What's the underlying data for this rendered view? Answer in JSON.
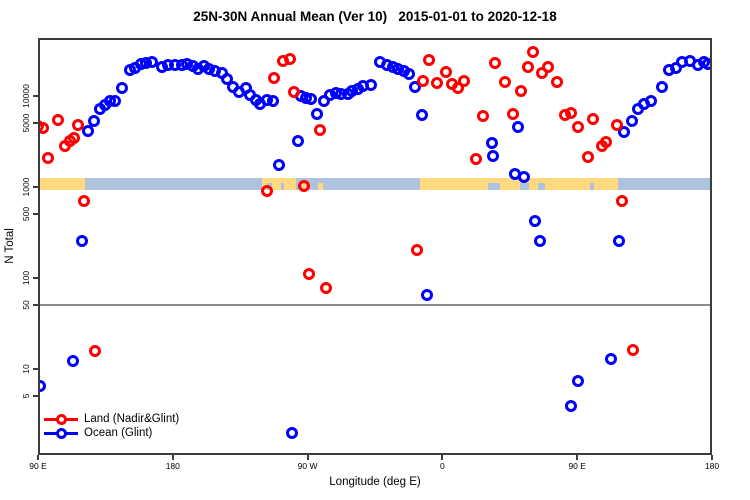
{
  "title": "25N-30N Annual Mean (Ver 10)   2015-01-01 to 2020-12-18",
  "chart_data": {
    "type": "scatter",
    "title": "25N-30N Annual Mean (Ver 10)   2015-01-01 to 2020-12-18",
    "xlabel": "Longitude (deg E)",
    "ylabel": "N Total",
    "x_axis": {
      "min": 90,
      "max": 540,
      "note": "longitude wraps eastward: 90E to 180 to 90W to 0 to 90E to 180",
      "ticks": [
        {
          "lon": 90,
          "label": "90 E"
        },
        {
          "lon": 180,
          "label": "180"
        },
        {
          "lon": 270,
          "label": "90 W"
        },
        {
          "lon": 360,
          "label": "0"
        },
        {
          "lon": 450,
          "label": "90 E"
        },
        {
          "lon": 540,
          "label": "180"
        }
      ]
    },
    "y_axis": {
      "scale": "log10",
      "min": 1.1,
      "max": 42000,
      "grid": false,
      "ticks": [
        {
          "value": 5,
          "label": "5"
        },
        {
          "value": 10,
          "label": "10"
        },
        {
          "value": 50,
          "label": "50"
        },
        {
          "value": 100,
          "label": "100"
        },
        {
          "value": 500,
          "label": "500"
        },
        {
          "value": 1000,
          "label": "1000"
        },
        {
          "value": 5000,
          "label": "5000"
        },
        {
          "value": 10000,
          "label": "10000"
        }
      ]
    },
    "reference_line": {
      "y": 50,
      "color": "#8c8c8c"
    },
    "surface_band": {
      "y_top_value": 1250,
      "y_bottom_value": 930,
      "land_color": "#FFD980",
      "ocean_color": "#AFC3DE",
      "segments": [
        {
          "from": 90,
          "to": 121.4,
          "surface": "land"
        },
        {
          "from": 121.4,
          "to": 239.6,
          "surface": "ocean"
        },
        {
          "from": 239.6,
          "to": 262.3,
          "surface": "land"
        },
        {
          "from": 262.3,
          "to": 345.1,
          "surface": "ocean"
        },
        {
          "from": 345.1,
          "to": 477.3,
          "surface": "land"
        },
        {
          "from": 477.3,
          "to": 540,
          "surface": "ocean"
        }
      ],
      "specks": [
        {
          "from": 243,
          "to": 246,
          "surface": "ocean"
        },
        {
          "from": 252,
          "to": 254.5,
          "surface": "ocean"
        },
        {
          "from": 266.5,
          "to": 269,
          "surface": "land"
        },
        {
          "from": 277,
          "to": 280,
          "surface": "land"
        },
        {
          "from": 390.5,
          "to": 398.5,
          "surface": "ocean"
        },
        {
          "from": 412,
          "to": 418,
          "surface": "ocean"
        },
        {
          "from": 424,
          "to": 428.5,
          "surface": "ocean"
        },
        {
          "from": 458.5,
          "to": 461.5,
          "surface": "ocean"
        }
      ]
    },
    "legend_position": "bottom-left",
    "series": [
      {
        "name": "Land (Nadir&Glint)",
        "color": "#FF0000",
        "marker": "open-circle",
        "points": [
          [
            90.0,
            4680
          ],
          [
            93.3,
            4450
          ],
          [
            96.7,
            2080
          ],
          [
            103.4,
            5450
          ],
          [
            108.0,
            2820
          ],
          [
            111.4,
            3200
          ],
          [
            114.0,
            3450
          ],
          [
            116.7,
            4800
          ],
          [
            120.7,
            702
          ],
          [
            128.1,
            15.8
          ],
          [
            242.9,
            904
          ],
          [
            247.6,
            15800
          ],
          [
            253.6,
            24300
          ],
          [
            258.3,
            25500
          ],
          [
            260.9,
            11100
          ],
          [
            267.6,
            1030
          ],
          [
            271.0,
            111
          ],
          [
            278.3,
            4230
          ],
          [
            282.3,
            77.6
          ],
          [
            343.1,
            203
          ],
          [
            347.1,
            14600
          ],
          [
            351.1,
            24900
          ],
          [
            356.4,
            13900
          ],
          [
            362.4,
            18400
          ],
          [
            366.4,
            13600
          ],
          [
            370.4,
            12200
          ],
          [
            374.4,
            14600
          ],
          [
            382.4,
            2030
          ],
          [
            387.1,
            6030
          ],
          [
            395.1,
            23100
          ],
          [
            401.8,
            14300
          ],
          [
            407.1,
            6340
          ],
          [
            412.5,
            11400
          ],
          [
            417.1,
            20800
          ],
          [
            420.5,
            30500
          ],
          [
            426.5,
            17900
          ],
          [
            430.5,
            20800
          ],
          [
            436.5,
            14300
          ],
          [
            441.9,
            6180
          ],
          [
            445.9,
            6500
          ],
          [
            450.5,
            4560
          ],
          [
            457.2,
            2140
          ],
          [
            460.6,
            5580
          ],
          [
            466.6,
            2820
          ],
          [
            469.3,
            3130
          ],
          [
            476.6,
            4800
          ],
          [
            480.0,
            702
          ],
          [
            487.3,
            16.2
          ]
        ]
      },
      {
        "name": "Ocean (Glint)",
        "color": "#0000FF",
        "marker": "open-circle",
        "points": [
          [
            91.3,
            6.5
          ],
          [
            113.4,
            12.2
          ],
          [
            119.4,
            255
          ],
          [
            123.4,
            4120
          ],
          [
            127.4,
            5310
          ],
          [
            131.4,
            7190
          ],
          [
            134.7,
            7970
          ],
          [
            138.1,
            8810
          ],
          [
            141.4,
            8810
          ],
          [
            146.1,
            12200
          ],
          [
            151.4,
            19300
          ],
          [
            154.7,
            20300
          ],
          [
            158.7,
            22500
          ],
          [
            162.1,
            23100
          ],
          [
            166.1,
            23700
          ],
          [
            172.8,
            20800
          ],
          [
            176.8,
            21900
          ],
          [
            181.5,
            21900
          ],
          [
            186.1,
            21900
          ],
          [
            189.5,
            22500
          ],
          [
            193.5,
            21400
          ],
          [
            196.8,
            19800
          ],
          [
            200.8,
            21400
          ],
          [
            204.2,
            19800
          ],
          [
            208.2,
            18800
          ],
          [
            212.9,
            17900
          ],
          [
            216.2,
            15400
          ],
          [
            220.2,
            12600
          ],
          [
            224.2,
            11100
          ],
          [
            228.9,
            12200
          ],
          [
            231.6,
            10300
          ],
          [
            235.6,
            9040
          ],
          [
            238.2,
            8170
          ],
          [
            242.9,
            9040
          ],
          [
            246.9,
            8810
          ],
          [
            250.9,
            1750
          ],
          [
            259.4,
            2.0
          ],
          [
            263.6,
            3200
          ],
          [
            265.6,
            10000
          ],
          [
            268.9,
            9510
          ],
          [
            272.3,
            9260
          ],
          [
            276.3,
            6340
          ],
          [
            281.0,
            8810
          ],
          [
            285.0,
            10300
          ],
          [
            289.0,
            10800
          ],
          [
            292.3,
            10500
          ],
          [
            297.0,
            10500
          ],
          [
            299.7,
            11400
          ],
          [
            303.7,
            11900
          ],
          [
            307.0,
            12900
          ],
          [
            312.4,
            13200
          ],
          [
            318.4,
            23700
          ],
          [
            323.0,
            21900
          ],
          [
            327.0,
            20800
          ],
          [
            330.4,
            19800
          ],
          [
            334.4,
            18800
          ],
          [
            337.7,
            17500
          ],
          [
            341.7,
            12600
          ],
          [
            346.4,
            6180
          ],
          [
            349.7,
            65
          ],
          [
            393.1,
            3050
          ],
          [
            393.8,
            2190
          ],
          [
            408.5,
            1390
          ],
          [
            410.5,
            4560
          ],
          [
            414.5,
            1290
          ],
          [
            421.8,
            423
          ],
          [
            425.2,
            255
          ],
          [
            445.9,
            3.9
          ],
          [
            450.5,
            7.4
          ],
          [
            472.6,
            12.9
          ],
          [
            477.9,
            255
          ],
          [
            481.3,
            4020
          ],
          [
            486.7,
            5310
          ],
          [
            490.7,
            7190
          ],
          [
            494.7,
            8170
          ],
          [
            499.4,
            8810
          ],
          [
            506.7,
            12600
          ],
          [
            511.4,
            19300
          ],
          [
            516.1,
            20300
          ],
          [
            520.1,
            23700
          ],
          [
            525.4,
            24300
          ],
          [
            530.8,
            21900
          ],
          [
            534.8,
            23700
          ],
          [
            537.4,
            22500
          ]
        ]
      }
    ]
  }
}
